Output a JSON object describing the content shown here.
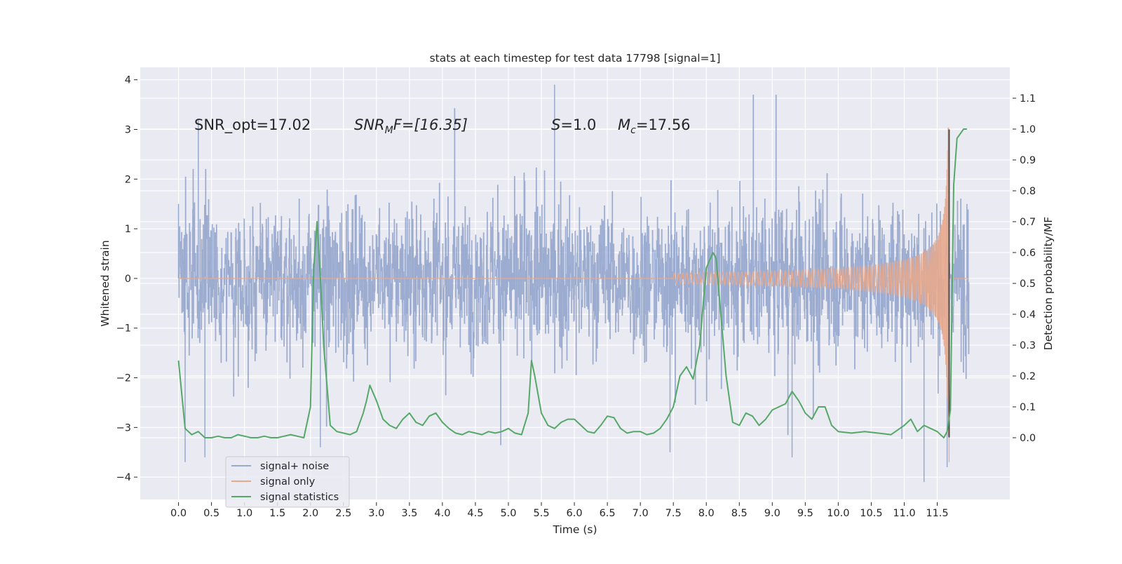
{
  "chart_data": {
    "type": "line",
    "title": "stats at each timestep for test data 17798 [signal=1]",
    "xlabel": "Time (s)",
    "ylabel_left": "Whitened strain",
    "ylabel_right": "Detection probability/MF",
    "xlim": [
      -0.58,
      12.6
    ],
    "ylim_left": [
      -4.45,
      4.25
    ],
    "ylim_right": [
      -0.2,
      1.2
    ],
    "xticks": [
      "0.0",
      "0.5",
      "1.0",
      "1.5",
      "2.0",
      "2.5",
      "3.0",
      "3.5",
      "4.0",
      "4.5",
      "5.0",
      "5.5",
      "6.0",
      "6.5",
      "7.0",
      "7.5",
      "8.0",
      "8.5",
      "9.0",
      "9.5",
      "10.0",
      "10.5",
      "11.0",
      "11.5"
    ],
    "yticks_left": [
      "4",
      "3",
      "2",
      "1",
      "0",
      "−1",
      "−2",
      "−3",
      "−4"
    ],
    "yticks_right": [
      "1.1",
      "1.0",
      "0.9",
      "0.8",
      "0.7",
      "0.6",
      "0.5",
      "0.4",
      "0.3",
      "0.2",
      "0.1",
      "0.0"
    ],
    "grid": true,
    "legend_position": "lower-left",
    "annotations": {
      "snr_opt": "SNR_opt=17.02",
      "snr_mf_label": "SNR",
      "snr_mf_sub": "M",
      "snr_mf_rest": "F=[16.35]",
      "s_label": "S",
      "s_rest": "=1.0",
      "mc_label": "M",
      "mc_sub": "c",
      "mc_rest": "=17.56"
    },
    "signal_merger_time": 11.68,
    "series": [
      {
        "name": "signal+ noise",
        "color": "#98a9ce",
        "description_envelope": {
          "core_amplitude": 1.0,
          "peak_range": [
            -4.1,
            3.9
          ]
        },
        "samples": [
          {
            "x": 0.0,
            "y": 1.5
          },
          {
            "x": 0.1,
            "y": -3.7
          },
          {
            "x": 0.3,
            "y": 3.2
          },
          {
            "x": 0.4,
            "y": -3.6
          },
          {
            "x": 2.15,
            "y": -3.4
          },
          {
            "x": 5.7,
            "y": 3.9
          },
          {
            "x": 7.45,
            "y": -3.5
          },
          {
            "x": 9.3,
            "y": -3.6
          },
          {
            "x": 11.3,
            "y": -4.1
          },
          {
            "x": 11.65,
            "y": -3.8
          },
          {
            "x": 11.95,
            "y": 1.5
          }
        ]
      },
      {
        "name": "signal only",
        "color": "#e8a88c",
        "chirp_start": 7.5,
        "chirp_end": 11.68,
        "peak_amplitude": 3.2
      },
      {
        "name": "signal statistics",
        "color": "#55a868",
        "x": [
          0.0,
          0.1,
          0.2,
          0.3,
          0.4,
          0.5,
          0.6,
          0.7,
          0.8,
          0.9,
          1.0,
          1.1,
          1.2,
          1.3,
          1.4,
          1.5,
          1.6,
          1.7,
          1.8,
          1.9,
          2.0,
          2.05,
          2.1,
          2.15,
          2.2,
          2.3,
          2.4,
          2.5,
          2.6,
          2.7,
          2.8,
          2.85,
          2.9,
          3.0,
          3.1,
          3.2,
          3.3,
          3.4,
          3.5,
          3.6,
          3.7,
          3.8,
          3.9,
          4.0,
          4.1,
          4.2,
          4.3,
          4.4,
          4.5,
          4.6,
          4.7,
          4.8,
          4.9,
          5.0,
          5.1,
          5.2,
          5.3,
          5.35,
          5.4,
          5.5,
          5.6,
          5.7,
          5.8,
          5.9,
          6.0,
          6.1,
          6.2,
          6.3,
          6.4,
          6.5,
          6.6,
          6.7,
          6.8,
          6.9,
          7.0,
          7.1,
          7.2,
          7.3,
          7.4,
          7.5,
          7.6,
          7.7,
          7.8,
          7.9,
          8.0,
          8.1,
          8.15,
          8.2,
          8.3,
          8.4,
          8.5,
          8.6,
          8.7,
          8.8,
          8.9,
          9.0,
          9.1,
          9.2,
          9.3,
          9.4,
          9.5,
          9.6,
          9.7,
          9.8,
          9.9,
          10.0,
          10.2,
          10.4,
          10.6,
          10.8,
          11.0,
          11.1,
          11.2,
          11.3,
          11.4,
          11.5,
          11.6,
          11.65,
          11.7,
          11.75,
          11.8,
          11.9,
          11.95
        ],
        "y": [
          0.25,
          0.03,
          0.01,
          0.02,
          0.0,
          0.0,
          0.005,
          0.0,
          0.0,
          0.01,
          0.005,
          0.0,
          0.0,
          0.005,
          0.0,
          0.0,
          0.005,
          0.01,
          0.005,
          0.0,
          0.1,
          0.55,
          0.7,
          0.52,
          0.3,
          0.04,
          0.02,
          0.015,
          0.01,
          0.02,
          0.08,
          0.12,
          0.17,
          0.12,
          0.06,
          0.04,
          0.03,
          0.06,
          0.08,
          0.05,
          0.04,
          0.07,
          0.08,
          0.05,
          0.03,
          0.015,
          0.01,
          0.02,
          0.015,
          0.01,
          0.02,
          0.015,
          0.02,
          0.03,
          0.015,
          0.01,
          0.08,
          0.25,
          0.2,
          0.08,
          0.04,
          0.03,
          0.05,
          0.06,
          0.06,
          0.04,
          0.02,
          0.015,
          0.04,
          0.07,
          0.065,
          0.03,
          0.015,
          0.02,
          0.02,
          0.01,
          0.015,
          0.03,
          0.06,
          0.1,
          0.2,
          0.23,
          0.19,
          0.3,
          0.55,
          0.6,
          0.58,
          0.45,
          0.2,
          0.05,
          0.04,
          0.08,
          0.07,
          0.04,
          0.06,
          0.09,
          0.1,
          0.11,
          0.15,
          0.12,
          0.08,
          0.06,
          0.1,
          0.1,
          0.04,
          0.02,
          0.015,
          0.02,
          0.015,
          0.01,
          0.04,
          0.06,
          0.02,
          0.04,
          0.03,
          0.02,
          0.0,
          0.02,
          0.09,
          0.82,
          0.97,
          1.0,
          1.0
        ]
      }
    ]
  }
}
